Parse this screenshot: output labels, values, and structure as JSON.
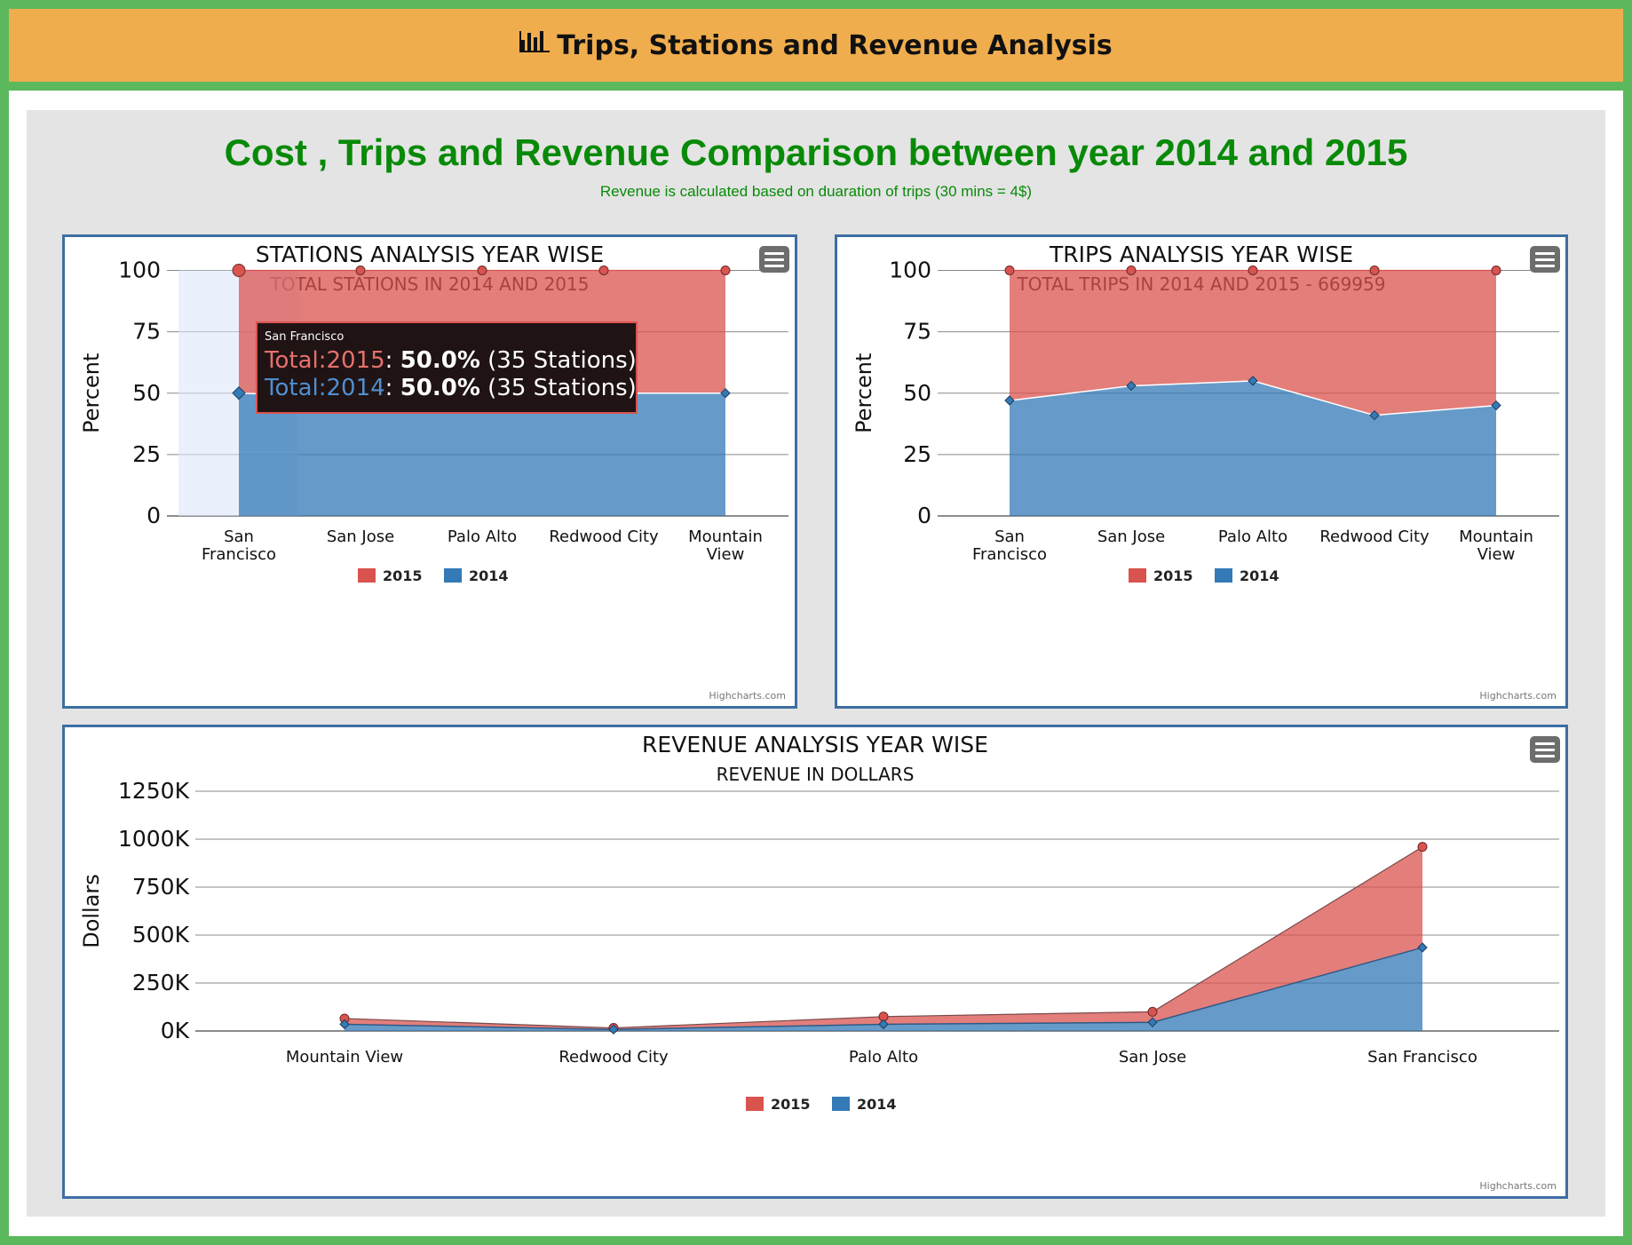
{
  "header": {
    "icon": "bar-chart-icon",
    "title": "Trips, Stations and Revenue Analysis",
    "background": "#f0ad4e"
  },
  "main": {
    "title": "Cost , Trips and Revenue Comparison between year 2014 and 2015",
    "subtitle": "Revenue is calculated based on duaration of trips (30 mins = 4$)",
    "title_color": "#088a08"
  },
  "colors": {
    "series_2015": "#d9534f",
    "series_2014": "#337ab7",
    "border": "#3d6ea3"
  },
  "credit": "Highcharts.com",
  "menu_icon": "hamburger-menu-icon",
  "chart_data": [
    {
      "type": "area",
      "stacking": "percent",
      "title": "STATIONS ANALYSIS YEAR WISE",
      "subtitle": "TOTAL STATIONS IN 2014 AND 2015",
      "ylabel": "Percent",
      "ylim": [
        0,
        100
      ],
      "yticks": [
        "0",
        "25",
        "50",
        "75",
        "100"
      ],
      "categories": [
        "San Francisco",
        "San Jose",
        "Palo Alto",
        "Redwood City",
        "Mountain View"
      ],
      "series": [
        {
          "name": "2015",
          "values": [
            50,
            51.5,
            50,
            50,
            50
          ]
        },
        {
          "name": "2014",
          "values": [
            50,
            48.5,
            50,
            50,
            50
          ]
        }
      ],
      "legend": "bottom-center",
      "grid": true,
      "tooltip": {
        "category": "San Francisco",
        "rows": [
          {
            "name": "Total:2015",
            "value": "50.0%",
            "detail": "(35 Stations)"
          },
          {
            "name": "Total:2014",
            "value": "50.0%",
            "detail": "(35 Stations)"
          }
        ]
      }
    },
    {
      "type": "area",
      "stacking": "percent",
      "title": "TRIPS ANALYSIS YEAR WISE",
      "subtitle": "TOTAL TRIPS IN 2014 AND 2015 - 669959",
      "ylabel": "Percent",
      "ylim": [
        0,
        100
      ],
      "yticks": [
        "0",
        "25",
        "50",
        "75",
        "100"
      ],
      "categories": [
        "San Francisco",
        "San Jose",
        "Palo Alto",
        "Redwood City",
        "Mountain View"
      ],
      "series": [
        {
          "name": "2015",
          "values": [
            53,
            47,
            45,
            59,
            55
          ]
        },
        {
          "name": "2014",
          "values": [
            47,
            53,
            55,
            41,
            45
          ]
        }
      ],
      "legend": "bottom-center",
      "grid": true
    },
    {
      "type": "area",
      "stacking": "normal",
      "title": "REVENUE ANALYSIS YEAR WISE",
      "subtitle": "REVENUE IN DOLLARS",
      "ylabel": "Dollars",
      "ylim": [
        0,
        1250000
      ],
      "yticks": [
        "0K",
        "250K",
        "500K",
        "750K",
        "1000K",
        "1250K"
      ],
      "categories": [
        "Mountain View",
        "Redwood City",
        "Palo Alto",
        "San Jose",
        "San Francisco"
      ],
      "series": [
        {
          "name": "2015",
          "values": [
            30000,
            8000,
            40000,
            55000,
            525000
          ]
        },
        {
          "name": "2014",
          "values": [
            35000,
            8000,
            35000,
            45000,
            435000
          ]
        }
      ],
      "legend": "bottom-center",
      "grid": true
    }
  ]
}
